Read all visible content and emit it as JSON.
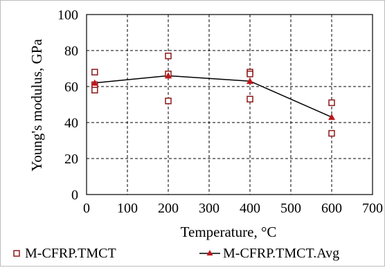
{
  "chart_data": {
    "type": "scatter",
    "title": "",
    "xlabel": "Temperature, °C",
    "ylabel": "Young's modulus, GPa",
    "xlim": [
      0,
      700
    ],
    "ylim": [
      0,
      100
    ],
    "x_ticks": [
      "0",
      "100",
      "200",
      "300",
      "400",
      "500",
      "600",
      "700"
    ],
    "y_ticks": [
      "0",
      "20",
      "40",
      "60",
      "80",
      "100"
    ],
    "grid": "dashed vertical and horizontal",
    "legend_position": "bottom",
    "series": [
      {
        "name": "M-CFRP.TMCT",
        "marker": "open-square",
        "color": "#8B1A1A",
        "x": [
          20,
          20,
          20,
          200,
          200,
          200,
          400,
          400,
          400,
          600,
          600
        ],
        "y": [
          68,
          61,
          58,
          77,
          67,
          52,
          68,
          67,
          53,
          51,
          34
        ]
      },
      {
        "name": "M-CFRP.TMCT.Avg",
        "marker": "filled-triangle",
        "color": "#C0161C",
        "line_color": "#000000",
        "x": [
          20,
          200,
          400,
          600
        ],
        "y": [
          62,
          66,
          63,
          43
        ]
      }
    ]
  }
}
